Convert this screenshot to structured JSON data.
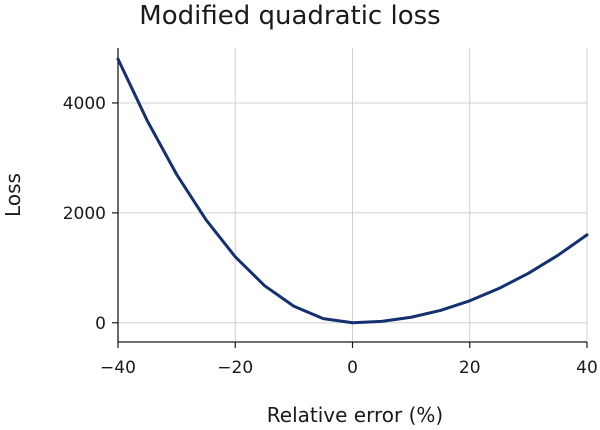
{
  "chart_data": {
    "type": "line",
    "title": "Modified quadratic loss",
    "xlabel": "Relative error (%)",
    "ylabel": "Loss",
    "xlim": [
      -40,
      40
    ],
    "ylim": [
      -350,
      5000
    ],
    "xticks": [
      -40,
      -20,
      0,
      20,
      40
    ],
    "yticks": [
      0,
      2000,
      4000
    ],
    "xtick_labels": [
      "−40",
      "−20",
      "0",
      "20",
      "40"
    ],
    "ytick_labels": [
      "0",
      "2000",
      "4000"
    ],
    "grid": true,
    "series": [
      {
        "color": "#15306e",
        "x": [
          -40,
          -35,
          -30,
          -25,
          -20,
          -15,
          -10,
          -5,
          0,
          5,
          10,
          15,
          20,
          25,
          30,
          35,
          40
        ],
        "y": [
          4800,
          3675,
          2700,
          1875,
          1200,
          675,
          300,
          75,
          0,
          25,
          100,
          225,
          400,
          625,
          900,
          1225,
          1600
        ]
      }
    ]
  }
}
